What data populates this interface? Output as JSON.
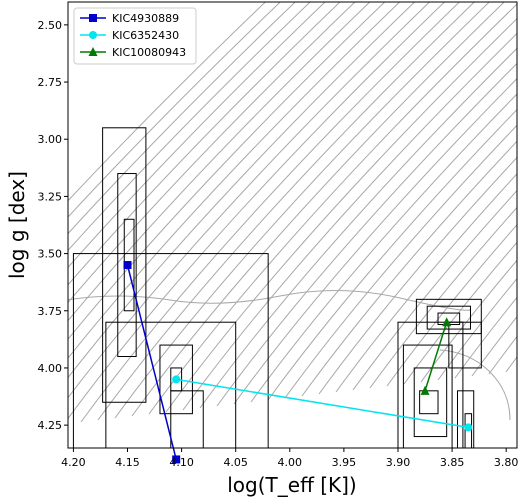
{
  "chart_data": {
    "type": "scatter",
    "xlabel": "log(T_eff [K])",
    "ylabel": "log g [dex]",
    "x_axis": {
      "min": 3.79,
      "max": 4.205,
      "reversed": true,
      "ticks": [
        4.2,
        4.15,
        4.1,
        4.05,
        4.0,
        3.95,
        3.9,
        3.85,
        3.8
      ]
    },
    "y_axis": {
      "min": 2.4,
      "max": 4.35,
      "reversed": true,
      "ticks": [
        2.5,
        2.75,
        3.0,
        3.25,
        3.5,
        3.75,
        4.0,
        4.25
      ]
    },
    "legend_position": "top-left",
    "series": [
      {
        "name": "KIC4930889",
        "color": "#0000cc",
        "marker": "square",
        "x": [
          4.15,
          4.105
        ],
        "y": [
          3.55,
          4.4
        ]
      },
      {
        "name": "KIC6352430",
        "color": "#00e5ee",
        "marker": "circle",
        "x": [
          4.105,
          3.835
        ],
        "y": [
          4.05,
          4.26
        ]
      },
      {
        "name": "KIC10080943",
        "color": "#007a00",
        "marker": "triangle",
        "x": [
          3.875,
          3.855
        ],
        "y": [
          4.1,
          3.8
        ]
      }
    ],
    "error_boxes": [
      {
        "x": [
          4.133,
          4.173
        ],
        "y": [
          2.95,
          4.15
        ]
      },
      {
        "x": [
          4.142,
          4.159
        ],
        "y": [
          3.15,
          3.95
        ]
      },
      {
        "x": [
          4.144,
          4.153
        ],
        "y": [
          3.35,
          3.75
        ]
      },
      {
        "x": [
          4.02,
          4.2
        ],
        "y": [
          3.5,
          4.4
        ]
      },
      {
        "x": [
          4.05,
          4.17
        ],
        "y": [
          3.8,
          4.4
        ]
      },
      {
        "x": [
          4.09,
          4.12
        ],
        "y": [
          3.9,
          4.2
        ]
      },
      {
        "x": [
          4.1,
          4.11
        ],
        "y": [
          4.0,
          4.1
        ]
      },
      {
        "x": [
          4.08,
          4.11
        ],
        "y": [
          4.1,
          4.4
        ]
      },
      {
        "x": [
          3.823,
          3.883
        ],
        "y": [
          3.7,
          3.85
        ]
      },
      {
        "x": [
          3.833,
          3.873
        ],
        "y": [
          3.73,
          3.83
        ]
      },
      {
        "x": [
          3.843,
          3.863
        ],
        "y": [
          3.76,
          3.81
        ]
      },
      {
        "x": [
          3.823,
          3.853
        ],
        "y": [
          3.8,
          4.0
        ]
      },
      {
        "x": [
          3.84,
          3.9
        ],
        "y": [
          3.8,
          4.4
        ]
      },
      {
        "x": [
          3.85,
          3.895
        ],
        "y": [
          3.9,
          4.35
        ]
      },
      {
        "x": [
          3.855,
          3.885
        ],
        "y": [
          4.0,
          4.3
        ]
      },
      {
        "x": [
          3.863,
          3.88
        ],
        "y": [
          4.1,
          4.2
        ]
      },
      {
        "x": [
          3.83,
          3.845
        ],
        "y": [
          4.1,
          4.35
        ]
      },
      {
        "x": [
          3.832,
          3.838
        ],
        "y": [
          4.2,
          4.35
        ]
      }
    ],
    "grid": false
  }
}
